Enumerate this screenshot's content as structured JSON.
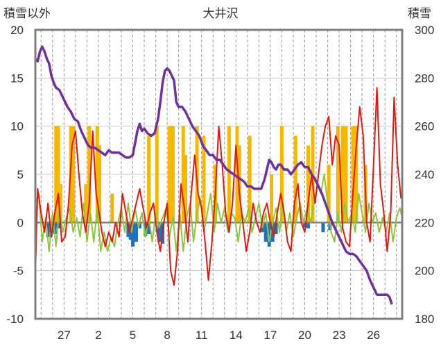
{
  "chart_data": {
    "type": "line",
    "title": "大井沢",
    "y_left_label": "積雪以外",
    "y_right_label": "積雪",
    "y_left_range": [
      -10,
      20
    ],
    "y_right_range": [
      180,
      300
    ],
    "y_left_ticks": [
      "20",
      "15",
      "10",
      "5",
      "0",
      "-5",
      "-10"
    ],
    "y_right_ticks": [
      "300",
      "280",
      "260",
      "240",
      "220",
      "200",
      "180"
    ],
    "x_range": [
      24.5,
      28.5
    ],
    "x_ticks": [
      {
        "label": "27",
        "x": 27
      },
      {
        "label": "2",
        "x": 30
      },
      {
        "label": "5",
        "x": 33
      },
      {
        "label": "8",
        "x": 36
      },
      {
        "label": "11",
        "x": 39
      },
      {
        "label": "14",
        "x": 42
      },
      {
        "label": "17",
        "x": 45
      },
      {
        "label": "20",
        "x": 48
      },
      {
        "label": "23",
        "x": 51
      },
      {
        "label": "26",
        "x": 54
      }
    ],
    "x_range_days": [
      24.5,
      56.5
    ],
    "grid": {
      "vertical": "dashed, daily",
      "horizontal": "major ticks"
    },
    "colors": {
      "temperature": "#e8160c",
      "snowfall": "#f5b700",
      "snow_depth_change": "#1e73c0",
      "other": "#8cc63f",
      "snow_depth": "#7030a0",
      "frame": "#7f7f7f",
      "zero_line": "#808080"
    },
    "snowfall_bars": [
      {
        "x": 26.3,
        "y": 10
      },
      {
        "x": 26.5,
        "y": 10
      },
      {
        "x": 26.7,
        "y": 4
      },
      {
        "x": 27.6,
        "y": 10
      },
      {
        "x": 27.8,
        "y": 10
      },
      {
        "x": 28.9,
        "y": 4
      },
      {
        "x": 29.2,
        "y": 10
      },
      {
        "x": 29.9,
        "y": 10
      },
      {
        "x": 30.1,
        "y": 8
      },
      {
        "x": 31.2,
        "y": 3
      },
      {
        "x": 34.4,
        "y": 9
      },
      {
        "x": 35.1,
        "y": 10
      },
      {
        "x": 36.2,
        "y": 10
      },
      {
        "x": 36.5,
        "y": 10
      },
      {
        "x": 37.4,
        "y": 10
      },
      {
        "x": 37.6,
        "y": 7
      },
      {
        "x": 38.6,
        "y": 10
      },
      {
        "x": 39.2,
        "y": 9
      },
      {
        "x": 40.2,
        "y": 6
      },
      {
        "x": 41.4,
        "y": 10
      },
      {
        "x": 42.1,
        "y": 10
      },
      {
        "x": 42.3,
        "y": 8
      },
      {
        "x": 43.2,
        "y": 9
      },
      {
        "x": 45.1,
        "y": 5
      },
      {
        "x": 46.0,
        "y": 10
      },
      {
        "x": 47.2,
        "y": 9
      },
      {
        "x": 48.3,
        "y": 8
      },
      {
        "x": 48.7,
        "y": 10
      },
      {
        "x": 50.1,
        "y": 6
      },
      {
        "x": 50.9,
        "y": 10
      },
      {
        "x": 51.3,
        "y": 10
      },
      {
        "x": 51.6,
        "y": 10
      },
      {
        "x": 52.2,
        "y": 10
      },
      {
        "x": 52.5,
        "y": 10
      },
      {
        "x": 53.3,
        "y": 6
      }
    ],
    "depth_change_bars": [
      {
        "x": 25.6,
        "y": -1.5
      },
      {
        "x": 25.9,
        "y": -1
      },
      {
        "x": 26.2,
        "y": -1.2
      },
      {
        "x": 26.5,
        "y": -0.6
      },
      {
        "x": 32.6,
        "y": -1.5
      },
      {
        "x": 32.8,
        "y": -1.8
      },
      {
        "x": 33.0,
        "y": -2.5
      },
      {
        "x": 33.3,
        "y": -2
      },
      {
        "x": 33.6,
        "y": -0.6
      },
      {
        "x": 34.1,
        "y": -1.4
      },
      {
        "x": 34.4,
        "y": -1.2
      },
      {
        "x": 35.3,
        "y": -2
      },
      {
        "x": 35.6,
        "y": -2.2
      },
      {
        "x": 44.3,
        "y": -1
      },
      {
        "x": 44.6,
        "y": -2
      },
      {
        "x": 44.9,
        "y": -2.5
      },
      {
        "x": 45.2,
        "y": -2
      },
      {
        "x": 45.5,
        "y": -1.2
      },
      {
        "x": 48.0,
        "y": -0.5
      },
      {
        "x": 48.3,
        "y": -0.6
      },
      {
        "x": 49.6,
        "y": -1
      },
      {
        "x": 50.2,
        "y": -0.8
      }
    ],
    "temperature_series": [
      [
        24.5,
        -5.5
      ],
      [
        24.7,
        3.5
      ],
      [
        25.0,
        1
      ],
      [
        25.3,
        -1
      ],
      [
        25.6,
        2
      ],
      [
        25.9,
        -1.5
      ],
      [
        26.2,
        1
      ],
      [
        26.5,
        3
      ],
      [
        26.8,
        -2
      ],
      [
        27.1,
        -1.5
      ],
      [
        27.4,
        2
      ],
      [
        27.7,
        8
      ],
      [
        28.0,
        9.5
      ],
      [
        28.3,
        5
      ],
      [
        28.6,
        1
      ],
      [
        28.9,
        -1
      ],
      [
        29.2,
        2
      ],
      [
        29.5,
        9.5
      ],
      [
        29.8,
        3
      ],
      [
        30.0,
        1.5
      ],
      [
        30.3,
        -1
      ],
      [
        30.6,
        -2.5
      ],
      [
        30.9,
        -1
      ],
      [
        31.2,
        -2
      ],
      [
        31.5,
        0
      ],
      [
        31.8,
        -1.5
      ],
      [
        32.1,
        3
      ],
      [
        32.4,
        1
      ],
      [
        32.7,
        -1
      ],
      [
        33.0,
        0.5
      ],
      [
        33.3,
        2
      ],
      [
        33.6,
        3.5
      ],
      [
        33.9,
        1.5
      ],
      [
        34.2,
        -0.5
      ],
      [
        34.5,
        1
      ],
      [
        34.8,
        2
      ],
      [
        35.1,
        -1
      ],
      [
        35.4,
        -3
      ],
      [
        35.7,
        0
      ],
      [
        36.0,
        2
      ],
      [
        36.3,
        -5
      ],
      [
        36.6,
        -6.5
      ],
      [
        36.9,
        -3
      ],
      [
        37.2,
        4
      ],
      [
        37.5,
        1.5
      ],
      [
        37.8,
        -2
      ],
      [
        38.1,
        3
      ],
      [
        38.4,
        7
      ],
      [
        38.7,
        3
      ],
      [
        39.0,
        1.5
      ],
      [
        39.3,
        -2
      ],
      [
        39.6,
        -6
      ],
      [
        39.9,
        -2
      ],
      [
        40.2,
        3
      ],
      [
        40.5,
        10
      ],
      [
        40.8,
        6
      ],
      [
        41.1,
        1
      ],
      [
        41.4,
        -1
      ],
      [
        41.7,
        2
      ],
      [
        42.0,
        8
      ],
      [
        42.3,
        3
      ],
      [
        42.6,
        0
      ],
      [
        42.9,
        -3
      ],
      [
        43.2,
        -1
      ],
      [
        43.5,
        2
      ],
      [
        43.8,
        0
      ],
      [
        44.1,
        -1
      ],
      [
        44.4,
        1
      ],
      [
        44.7,
        2
      ],
      [
        45.0,
        0
      ],
      [
        45.3,
        -1.5
      ],
      [
        45.6,
        1
      ],
      [
        45.9,
        3
      ],
      [
        46.2,
        1
      ],
      [
        46.5,
        -2
      ],
      [
        46.8,
        -3
      ],
      [
        47.1,
        2
      ],
      [
        47.4,
        4
      ],
      [
        47.7,
        0
      ],
      [
        48.0,
        -1
      ],
      [
        48.3,
        2
      ],
      [
        48.6,
        5
      ],
      [
        48.9,
        2
      ],
      [
        49.2,
        5
      ],
      [
        49.5,
        8
      ],
      [
        49.8,
        10
      ],
      [
        50.1,
        11
      ],
      [
        50.4,
        6
      ],
      [
        50.7,
        9
      ],
      [
        51.0,
        8
      ],
      [
        51.3,
        -0.5
      ],
      [
        51.6,
        -2
      ],
      [
        51.9,
        -2.5
      ],
      [
        52.2,
        3
      ],
      [
        52.5,
        8
      ],
      [
        52.8,
        12
      ],
      [
        53.1,
        9
      ],
      [
        53.4,
        0
      ],
      [
        53.7,
        -2
      ],
      [
        54.0,
        6
      ],
      [
        54.3,
        14
      ],
      [
        54.6,
        4
      ],
      [
        54.9,
        1
      ],
      [
        55.2,
        -3
      ],
      [
        55.5,
        1
      ],
      [
        55.8,
        13
      ],
      [
        56.1,
        6
      ],
      [
        56.4,
        2.5
      ]
    ],
    "other_series": [
      [
        24.5,
        2
      ],
      [
        24.8,
        3
      ],
      [
        25.1,
        -2
      ],
      [
        25.4,
        0.5
      ],
      [
        25.7,
        -3
      ],
      [
        26.0,
        1
      ],
      [
        26.3,
        -2.5
      ],
      [
        26.6,
        1.5
      ],
      [
        26.9,
        -1
      ],
      [
        27.2,
        0.5
      ],
      [
        27.5,
        1.5
      ],
      [
        27.8,
        -1
      ],
      [
        28.1,
        0.5
      ],
      [
        28.4,
        -1.5
      ],
      [
        28.7,
        2
      ],
      [
        29.0,
        -2
      ],
      [
        29.3,
        1
      ],
      [
        29.6,
        -2
      ],
      [
        29.9,
        1.5
      ],
      [
        30.2,
        -3
      ],
      [
        30.5,
        -1
      ],
      [
        30.8,
        -3
      ],
      [
        31.1,
        -1.5
      ],
      [
        31.4,
        -2.5
      ],
      [
        31.7,
        0
      ],
      [
        32.0,
        1.5
      ],
      [
        32.3,
        -1
      ],
      [
        32.6,
        2
      ],
      [
        32.9,
        -1
      ],
      [
        33.2,
        1.5
      ],
      [
        33.5,
        -0.5
      ],
      [
        33.8,
        1
      ],
      [
        34.1,
        -1.5
      ],
      [
        34.4,
        0.5
      ],
      [
        34.7,
        -2
      ],
      [
        35.0,
        1
      ],
      [
        35.3,
        -0.5
      ],
      [
        35.6,
        0.5
      ],
      [
        35.9,
        1.5
      ],
      [
        36.2,
        -1.5
      ],
      [
        36.5,
        0.5
      ],
      [
        36.8,
        -3
      ],
      [
        37.1,
        1
      ],
      [
        37.4,
        -3
      ],
      [
        37.7,
        0.5
      ],
      [
        38.0,
        2
      ],
      [
        38.3,
        -2
      ],
      [
        38.6,
        1
      ],
      [
        38.9,
        2.5
      ],
      [
        39.2,
        -1
      ],
      [
        39.5,
        1
      ],
      [
        39.8,
        3
      ],
      [
        40.1,
        -1
      ],
      [
        40.4,
        2
      ],
      [
        40.7,
        0
      ],
      [
        41.0,
        1.5
      ],
      [
        41.3,
        -1
      ],
      [
        41.6,
        1
      ],
      [
        41.9,
        0.5
      ],
      [
        42.2,
        -2
      ],
      [
        42.5,
        1
      ],
      [
        42.8,
        0
      ],
      [
        43.1,
        1.5
      ],
      [
        43.4,
        -1
      ],
      [
        43.7,
        0.5
      ],
      [
        44.0,
        2
      ],
      [
        44.3,
        -0.5
      ],
      [
        44.6,
        1
      ],
      [
        44.9,
        -2
      ],
      [
        45.2,
        0
      ],
      [
        45.5,
        1.5
      ],
      [
        45.8,
        -1
      ],
      [
        46.1,
        2
      ],
      [
        46.4,
        -1
      ],
      [
        46.7,
        1
      ],
      [
        47.0,
        -1.5
      ],
      [
        47.3,
        0.5
      ],
      [
        47.6,
        2
      ],
      [
        47.9,
        0
      ],
      [
        48.2,
        1.5
      ],
      [
        48.5,
        0
      ],
      [
        48.8,
        2
      ],
      [
        49.1,
        4
      ],
      [
        49.4,
        3
      ],
      [
        49.7,
        5
      ],
      [
        50.0,
        2
      ],
      [
        50.3,
        -1
      ],
      [
        50.6,
        -2
      ],
      [
        50.9,
        1
      ],
      [
        51.2,
        -1
      ],
      [
        51.5,
        2
      ],
      [
        51.8,
        0
      ],
      [
        52.1,
        1
      ],
      [
        52.4,
        -1
      ],
      [
        52.7,
        3
      ],
      [
        53.0,
        1
      ],
      [
        53.3,
        -1
      ],
      [
        53.6,
        2
      ],
      [
        53.9,
        0
      ],
      [
        54.2,
        1
      ],
      [
        54.5,
        -1
      ],
      [
        54.8,
        0.5
      ],
      [
        55.1,
        -1
      ],
      [
        55.4,
        1
      ],
      [
        55.7,
        -2
      ],
      [
        56.0,
        0.5
      ],
      [
        56.3,
        1.5
      ],
      [
        56.5,
        0.5
      ]
    ],
    "snow_depth_series": [
      [
        24.5,
        288
      ],
      [
        24.7,
        287
      ],
      [
        24.9,
        291
      ],
      [
        25.1,
        293
      ],
      [
        25.3,
        291
      ],
      [
        25.5,
        288
      ],
      [
        25.7,
        286
      ],
      [
        25.9,
        281
      ],
      [
        26.1,
        278
      ],
      [
        26.3,
        276
      ],
      [
        26.6,
        275
      ],
      [
        26.9,
        272
      ],
      [
        27.3,
        268
      ],
      [
        27.6,
        266
      ],
      [
        27.9,
        263
      ],
      [
        28.2,
        262
      ],
      [
        28.5,
        258
      ],
      [
        28.8,
        255
      ],
      [
        29.1,
        252
      ],
      [
        29.4,
        251
      ],
      [
        29.7,
        251
      ],
      [
        30.0,
        250
      ],
      [
        30.3,
        249
      ],
      [
        30.6,
        248
      ],
      [
        30.9,
        250
      ],
      [
        31.2,
        249
      ],
      [
        31.5,
        249
      ],
      [
        31.8,
        249
      ],
      [
        32.1,
        248
      ],
      [
        32.4,
        247
      ],
      [
        32.7,
        247
      ],
      [
        33.0,
        248
      ],
      [
        33.2,
        253
      ],
      [
        33.4,
        258
      ],
      [
        33.6,
        261
      ],
      [
        33.8,
        258
      ],
      [
        34.0,
        259
      ],
      [
        34.3,
        257
      ],
      [
        34.6,
        256
      ],
      [
        34.9,
        257
      ],
      [
        35.2,
        263
      ],
      [
        35.4,
        270
      ],
      [
        35.6,
        278
      ],
      [
        35.8,
        283
      ],
      [
        36.0,
        284
      ],
      [
        36.2,
        283
      ],
      [
        36.4,
        281
      ],
      [
        36.6,
        279
      ],
      [
        36.8,
        270
      ],
      [
        37.0,
        268
      ],
      [
        37.3,
        268
      ],
      [
        37.6,
        266
      ],
      [
        37.9,
        263
      ],
      [
        38.2,
        260
      ],
      [
        38.5,
        258
      ],
      [
        38.8,
        256
      ],
      [
        39.1,
        252
      ],
      [
        39.4,
        250
      ],
      [
        39.7,
        248
      ],
      [
        40.0,
        248
      ],
      [
        40.3,
        246
      ],
      [
        40.6,
        246
      ],
      [
        40.9,
        244
      ],
      [
        41.2,
        242
      ],
      [
        41.5,
        241
      ],
      [
        41.8,
        240
      ],
      [
        42.1,
        239
      ],
      [
        42.4,
        238
      ],
      [
        42.7,
        237
      ],
      [
        43.0,
        235
      ],
      [
        43.3,
        235
      ],
      [
        43.6,
        234
      ],
      [
        43.9,
        234
      ],
      [
        44.2,
        234
      ],
      [
        44.5,
        238
      ],
      [
        44.7,
        242
      ],
      [
        44.9,
        246
      ],
      [
        45.1,
        245
      ],
      [
        45.3,
        243
      ],
      [
        45.5,
        242
      ],
      [
        45.7,
        244
      ],
      [
        45.9,
        244
      ],
      [
        46.2,
        242
      ],
      [
        46.5,
        242
      ],
      [
        46.8,
        240
      ],
      [
        47.1,
        242
      ],
      [
        47.4,
        244
      ],
      [
        47.7,
        245
      ],
      [
        48.0,
        243
      ],
      [
        48.3,
        243
      ],
      [
        48.6,
        240
      ],
      [
        48.9,
        238
      ],
      [
        49.2,
        235
      ],
      [
        49.5,
        232
      ],
      [
        49.8,
        228
      ],
      [
        50.1,
        224
      ],
      [
        50.4,
        220
      ],
      [
        50.7,
        217
      ],
      [
        51.0,
        214
      ],
      [
        51.3,
        211
      ],
      [
        51.6,
        208
      ],
      [
        51.9,
        207
      ],
      [
        52.2,
        207
      ],
      [
        52.5,
        206
      ],
      [
        52.8,
        204
      ],
      [
        53.1,
        202
      ],
      [
        53.4,
        200
      ],
      [
        53.7,
        196
      ],
      [
        54.0,
        193
      ],
      [
        54.3,
        190
      ],
      [
        54.6,
        190
      ],
      [
        54.9,
        190
      ],
      [
        55.2,
        190
      ],
      [
        55.4,
        189
      ],
      [
        55.6,
        186
      ]
    ]
  }
}
